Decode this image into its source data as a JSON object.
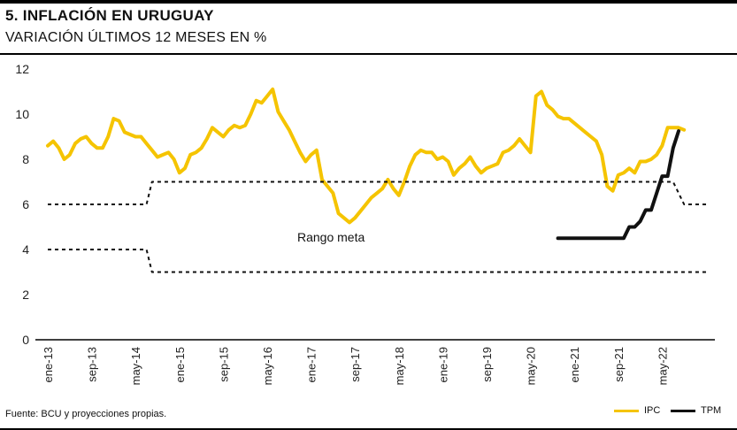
{
  "header": {
    "title": "5. INFLACIÓN EN URUGUAY",
    "subtitle": "VARIACIÓN ÚLTIMOS 12 MESES EN %"
  },
  "footer": {
    "source": "Fuente: BCU y proyecciones propias."
  },
  "colors": {
    "ipc": "#f5c400",
    "tpm": "#111111",
    "range": "#111111"
  },
  "chart_data": {
    "type": "line",
    "title": "5. INFLACIÓN EN URUGUAY",
    "subtitle": "VARIACIÓN ÚLTIMOS 12 MESES EN %",
    "xlabel": "",
    "ylabel": "",
    "ylim": [
      0,
      12
    ],
    "yticks": [
      0,
      2,
      4,
      6,
      8,
      10,
      12
    ],
    "x_start": "ene-13",
    "xticks": [
      "ene-13",
      "sep-13",
      "may-14",
      "ene-15",
      "sep-15",
      "may-16",
      "ene-17",
      "sep-17",
      "may-18",
      "ene-19",
      "sep-19",
      "may-20",
      "ene-21",
      "sep-21",
      "may-22"
    ],
    "grid": false,
    "legend": "bottom-right",
    "annotation": "Rango meta",
    "series": [
      {
        "name": "IPC",
        "style": "solid",
        "values": [
          8.6,
          8.8,
          8.5,
          8.0,
          8.2,
          8.7,
          8.9,
          9.0,
          8.7,
          8.5,
          8.5,
          9.0,
          9.8,
          9.7,
          9.2,
          9.1,
          9.0,
          9.0,
          8.7,
          8.4,
          8.1,
          8.2,
          8.3,
          8.0,
          7.4,
          7.6,
          8.2,
          8.3,
          8.5,
          8.9,
          9.4,
          9.2,
          9.0,
          9.3,
          9.5,
          9.4,
          9.5,
          10.0,
          10.6,
          10.5,
          10.8,
          11.1,
          10.1,
          9.7,
          9.3,
          8.8,
          8.3,
          7.9,
          8.2,
          8.4,
          7.1,
          6.8,
          6.5,
          5.6,
          5.4,
          5.2,
          5.4,
          5.7,
          6.0,
          6.3,
          6.5,
          6.7,
          7.1,
          6.7,
          6.4,
          7.0,
          7.7,
          8.2,
          8.4,
          8.3,
          8.3,
          8.0,
          8.1,
          7.9,
          7.3,
          7.6,
          7.8,
          8.1,
          7.7,
          7.4,
          7.6,
          7.7,
          7.8,
          8.3,
          8.4,
          8.6,
          8.9,
          8.6,
          8.3,
          10.8,
          11.0,
          10.4,
          10.2,
          9.9,
          9.8,
          9.8,
          9.6,
          9.4,
          9.2,
          9.0,
          8.8,
          8.2,
          6.8,
          6.6,
          7.3,
          7.4,
          7.6,
          7.4,
          7.9,
          7.9,
          8.0,
          8.2,
          8.6,
          9.4,
          9.4,
          9.4,
          9.3
        ]
      },
      {
        "name": "TPM",
        "style": "solid",
        "start": "oct-20",
        "values": [
          4.5,
          4.5,
          4.5,
          4.5,
          4.5,
          4.5,
          4.5,
          4.5,
          4.5,
          4.5,
          4.5,
          4.5,
          4.5,
          5.0,
          5.0,
          5.25,
          5.75,
          5.75,
          6.5,
          7.25,
          7.25,
          8.5,
          9.25
        ]
      },
      {
        "name": "Rango meta (techo)",
        "style": "dashed",
        "points": [
          [
            "ene-13",
            6
          ],
          [
            "jul-14",
            6
          ],
          [
            "ago-14",
            7
          ],
          [
            "jul-22",
            7
          ],
          [
            "sep-22",
            6
          ],
          [
            "ene-23",
            6
          ]
        ]
      },
      {
        "name": "Rango meta (piso)",
        "style": "dashed",
        "points": [
          [
            "ene-13",
            4
          ],
          [
            "jul-14",
            4
          ],
          [
            "ago-14",
            3
          ],
          [
            "ene-23",
            3
          ]
        ]
      }
    ]
  }
}
